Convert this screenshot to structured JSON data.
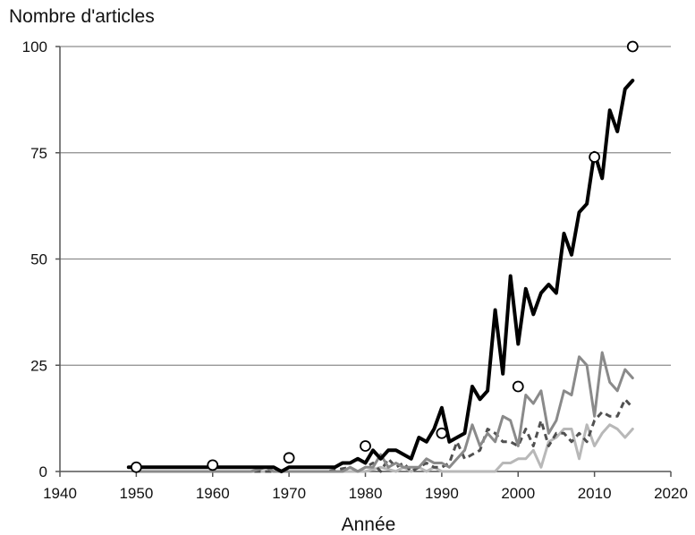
{
  "chart_data": {
    "type": "line",
    "title": "",
    "ylabel": "Nombre d'articles",
    "xlabel": "Année",
    "xlim": [
      1940,
      2020
    ],
    "ylim": [
      0,
      100
    ],
    "xticks": [
      1940,
      1950,
      1960,
      1970,
      1980,
      1990,
      2000,
      2010,
      2020
    ],
    "yticks": [
      0,
      25,
      50,
      75,
      100
    ],
    "grid": "horizontal",
    "legend": "none",
    "series": [
      {
        "color": "#000000",
        "style": "solid",
        "width": 4,
        "x": [
          1949,
          1950,
          1955,
          1960,
          1965,
          1968,
          1969,
          1970,
          1971,
          1972,
          1973,
          1974,
          1975,
          1976,
          1977,
          1978,
          1979,
          1980,
          1981,
          1982,
          1983,
          1984,
          1985,
          1986,
          1987,
          1988,
          1989,
          1990,
          1991,
          1992,
          1993,
          1994,
          1995,
          1996,
          1997,
          1998,
          1999,
          2000,
          2001,
          2002,
          2003,
          2004,
          2005,
          2006,
          2007,
          2008,
          2009,
          2010,
          2011,
          2012,
          2013,
          2014,
          2015
        ],
        "y": [
          1,
          1,
          1,
          1,
          1,
          1,
          0,
          1,
          1,
          1,
          1,
          1,
          1,
          1,
          2,
          2,
          3,
          2,
          5,
          3,
          5,
          5,
          4,
          3,
          8,
          7,
          10,
          15,
          7,
          8,
          9,
          20,
          17,
          19,
          38,
          23,
          46,
          30,
          43,
          37,
          42,
          44,
          42,
          56,
          51,
          61,
          63,
          75,
          69,
          85,
          80,
          90,
          92
        ]
      },
      {
        "color": "#8a8a8a",
        "style": "solid",
        "width": 3,
        "x": [
          1950,
          1960,
          1965,
          1967,
          1968,
          1975,
          1977,
          1978,
          1979,
          1980,
          1981,
          1982,
          1983,
          1984,
          1985,
          1986,
          1987,
          1988,
          1989,
          1990,
          1991,
          1992,
          1993,
          1994,
          1995,
          1996,
          1997,
          1998,
          1999,
          2000,
          2001,
          2002,
          2003,
          2004,
          2005,
          2006,
          2007,
          2008,
          2009,
          2010,
          2011,
          2012,
          2013,
          2014,
          2015
        ],
        "y": [
          0,
          0,
          0,
          1,
          0,
          0,
          0,
          1,
          0,
          1,
          1,
          4,
          1,
          2,
          1,
          1,
          1,
          3,
          2,
          2,
          1,
          3,
          5,
          11,
          6,
          9,
          7,
          13,
          12,
          6,
          18,
          16,
          19,
          9,
          12,
          19,
          18,
          27,
          25,
          13,
          28,
          21,
          19,
          24,
          22
        ]
      },
      {
        "color": "#505050",
        "style": "dashed",
        "width": 3,
        "x": [
          1950,
          1960,
          1970,
          1975,
          1978,
          1979,
          1980,
          1981,
          1982,
          1983,
          1984,
          1985,
          1986,
          1987,
          1988,
          1989,
          1990,
          1991,
          1992,
          1993,
          1994,
          1995,
          1996,
          1997,
          1998,
          1999,
          2000,
          2001,
          2002,
          2003,
          2004,
          2005,
          2006,
          2007,
          2008,
          2009,
          2010,
          2011,
          2012,
          2013,
          2014,
          2015
        ],
        "y": [
          0,
          0,
          0,
          0,
          1,
          0,
          1,
          2,
          0,
          3,
          1,
          2,
          0,
          1,
          2,
          1,
          1,
          2,
          7,
          3,
          4,
          5,
          10,
          9,
          7,
          7,
          6,
          10,
          6,
          12,
          6,
          9,
          9,
          7,
          9,
          7,
          12,
          14,
          13,
          13,
          17,
          15
        ]
      },
      {
        "color": "#b8b8b8",
        "style": "solid",
        "width": 3,
        "x": [
          1950,
          1960,
          1970,
          1980,
          1982,
          1984,
          1985,
          1986,
          1987,
          1988,
          1989,
          1990,
          1991,
          1992,
          1993,
          1994,
          1995,
          1996,
          1997,
          1998,
          1999,
          2000,
          2001,
          2002,
          2003,
          2004,
          2005,
          2006,
          2007,
          2008,
          2009,
          2010,
          2011,
          2012,
          2013,
          2014,
          2015
        ],
        "y": [
          0,
          0,
          0,
          0,
          1,
          0,
          1,
          0,
          1,
          0,
          1,
          0,
          0,
          0,
          0,
          0,
          0,
          0,
          0,
          2,
          2,
          3,
          3,
          5,
          1,
          7,
          8,
          10,
          10,
          3,
          11,
          6,
          9,
          11,
          10,
          8,
          10
        ]
      }
    ],
    "markers": {
      "shape": "open-circle",
      "x": [
        1950,
        1960,
        1970,
        1980,
        1990,
        2000,
        2010,
        2015
      ],
      "y": [
        1,
        1.5,
        3.2,
        6,
        9,
        20,
        74,
        100
      ]
    }
  }
}
